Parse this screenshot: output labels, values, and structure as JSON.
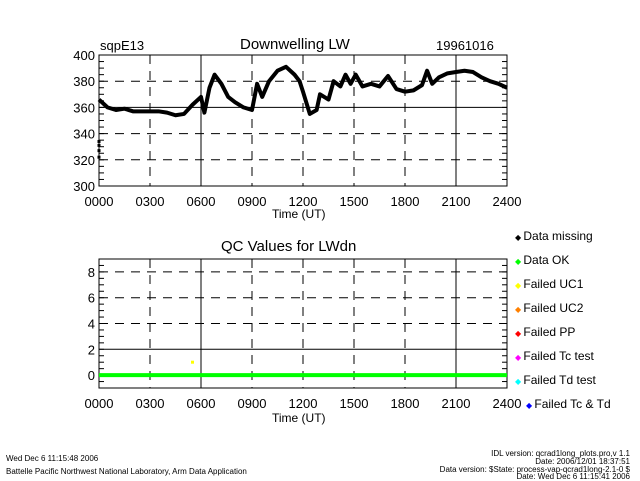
{
  "chart_data": [
    {
      "type": "scatter",
      "site": "sqpE13",
      "title": "Downwelling LW",
      "date": "19961016",
      "xlabel": "Time (UT)",
      "ylabel": "",
      "xlim": [
        0,
        24
      ],
      "ylim": [
        300,
        400
      ],
      "xticks": [
        "0000",
        "0300",
        "0600",
        "0900",
        "1200",
        "1500",
        "1800",
        "2100",
        "2400"
      ],
      "yticks": [
        "300",
        "320",
        "340",
        "360",
        "380",
        "400"
      ],
      "grid": true,
      "series": [
        {
          "name": "LWdn",
          "color": "#000000",
          "x": [
            0,
            0.5,
            1,
            1.5,
            2,
            2.5,
            3,
            3.5,
            4,
            4.5,
            5,
            5.5,
            6,
            6.2,
            6.5,
            6.8,
            7.2,
            7.6,
            8,
            8.5,
            9,
            9.3,
            9.6,
            10,
            10.5,
            11,
            11.5,
            11.8,
            12,
            12.4,
            12.8,
            13,
            13.5,
            13.8,
            14.2,
            14.5,
            14.8,
            15.1,
            15.5,
            16,
            16.5,
            17,
            17.5,
            18,
            18.5,
            19,
            19.3,
            19.6,
            20,
            20.5,
            21,
            21.5,
            22,
            22.5,
            23,
            23.5,
            24
          ],
          "y": [
            366,
            360,
            358,
            359,
            357,
            357,
            357,
            357,
            356,
            354,
            355,
            362,
            368,
            356,
            375,
            385,
            378,
            368,
            364,
            360,
            358,
            378,
            368,
            380,
            388,
            391,
            385,
            380,
            372,
            355,
            358,
            370,
            366,
            380,
            376,
            385,
            378,
            385,
            376,
            378,
            376,
            384,
            374,
            372,
            373,
            377,
            388,
            378,
            383,
            386,
            387,
            388,
            387,
            383,
            380,
            378,
            375
          ]
        },
        {
          "name": "missing-points",
          "color": "#000000",
          "x": [
            0,
            0,
            0,
            0
          ],
          "y": [
            322,
            327,
            331,
            334
          ]
        }
      ]
    },
    {
      "type": "scatter",
      "title": "QC Values for LWdn",
      "xlabel": "Time (UT)",
      "xlim": [
        0,
        24
      ],
      "ylim": [
        -1,
        9
      ],
      "xticks": [
        "0000",
        "0300",
        "0600",
        "0900",
        "1200",
        "1500",
        "1800",
        "2100",
        "2400"
      ],
      "yticks": [
        "0",
        "2",
        "4",
        "6",
        "8"
      ],
      "grid": true,
      "series": [
        {
          "name": "Data OK",
          "color": "#00ff00",
          "x": [
            0,
            24
          ],
          "y": [
            0,
            0
          ]
        },
        {
          "name": "Failed UC1",
          "color": "#ffff00",
          "x": [
            5.5
          ],
          "y": [
            1
          ]
        }
      ]
    }
  ],
  "legend": [
    {
      "label": "Data missing",
      "color": "#000000"
    },
    {
      "label": "Data OK",
      "color": "#00ff00"
    },
    {
      "label": "Failed UC1",
      "color": "#ffff00"
    },
    {
      "label": "Failed UC2",
      "color": "#ff8000"
    },
    {
      "label": "Failed PP",
      "color": "#ff0000"
    },
    {
      "label": "Failed Tc test",
      "color": "#ff00ff"
    },
    {
      "label": "Failed Td test",
      "color": "#00ffff"
    },
    {
      "label": "Failed Tc & Td",
      "color": "#0000ff"
    }
  ],
  "footer": {
    "timestamp": "Wed Dec  6 11:15:48 2006",
    "org": "Battelle Pacific Northwest National Laboratory, Arm Data Application",
    "idl_version": "IDL version: qcrad1long_plots.pro,v 1.1",
    "idl_date": "Date: 2006/12/01 18:37:51",
    "data_version": "Data version: $State: process-vap-qcrad1long-2.1-0 $",
    "data_date": "Date: Wed Dec  6 11:15:41 2006"
  }
}
